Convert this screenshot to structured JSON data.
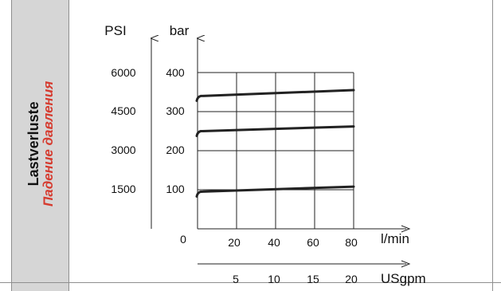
{
  "chart_data": {
    "type": "line",
    "title": "Lastverluste",
    "subtitle": "Падение давления",
    "xlabel": "l/min",
    "xlabel_secondary": "USgpm",
    "ylabel_left": "PSI",
    "ylabel_right": "bar",
    "x_ticks": [
      "20",
      "40",
      "60",
      "80"
    ],
    "x_ticks_secondary": [
      "5",
      "10",
      "15",
      "20"
    ],
    "y_ticks_psi": [
      "1500",
      "3000",
      "4500",
      "6000"
    ],
    "y_ticks_bar": [
      "100",
      "200",
      "300",
      "400"
    ],
    "origin_label": "0",
    "xlim": [
      0,
      80
    ],
    "ylim": [
      0,
      400
    ],
    "grid": true,
    "series": [
      {
        "x": [
          0,
          80
        ],
        "values": [
          340,
          355
        ]
      },
      {
        "x": [
          0,
          80
        ],
        "values": [
          250,
          262
        ]
      },
      {
        "x": [
          0,
          80
        ],
        "values": [
          95,
          108
        ]
      }
    ]
  },
  "colors": {
    "series": "#222222",
    "grid": "#222222",
    "title_de": "#111111",
    "title_ru": "#d63b2f",
    "band": "#d6d6d6"
  }
}
